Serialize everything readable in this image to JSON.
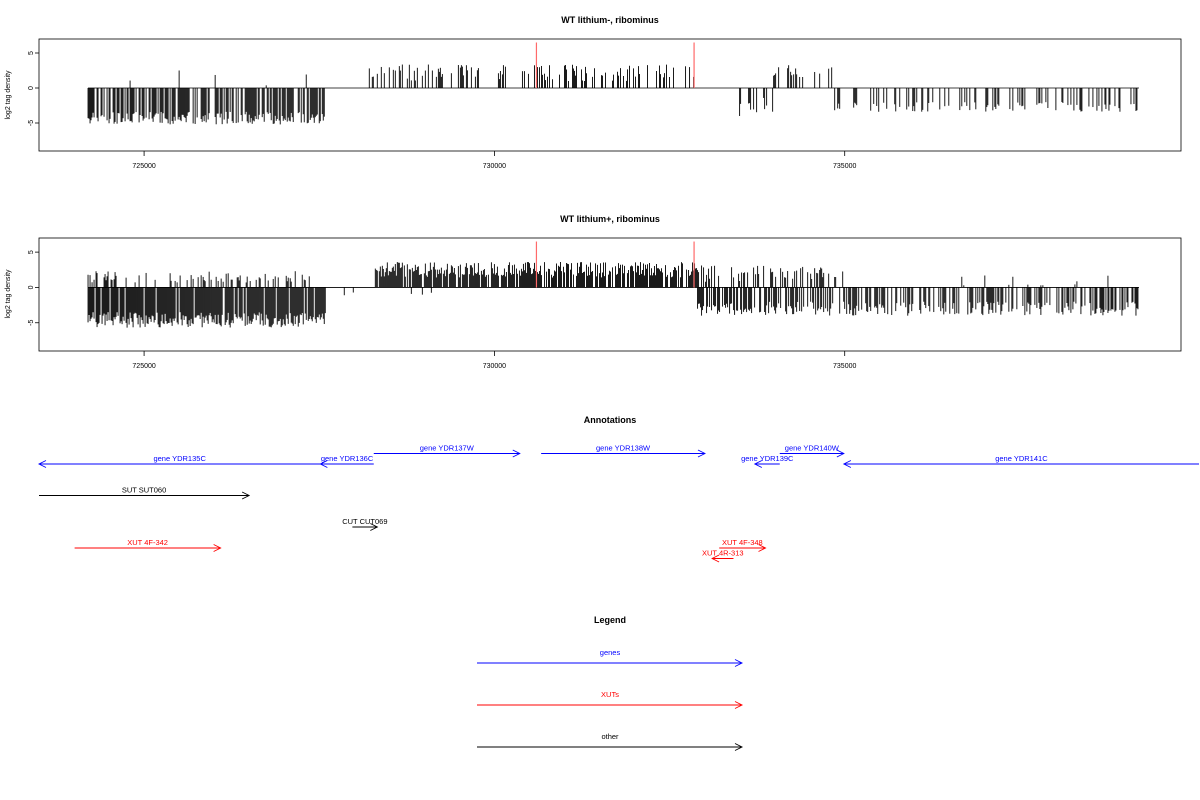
{
  "colors": {
    "genes": "#0000ff",
    "xuts": "#ff0000",
    "other": "#000000",
    "highlight": "#ff6a6a",
    "bars": "#000000"
  },
  "chart_data": [
    {
      "type": "bar",
      "title": "WT lithium-, ribominus",
      "ylabel": "log2 tag density",
      "xlim": [
        723500,
        739800
      ],
      "ylim": [
        -9,
        7
      ],
      "x_ticks": [
        725000,
        730000,
        735000
      ],
      "y_ticks": [
        -5,
        0,
        5
      ],
      "highlight_positions": [
        730600,
        732850
      ],
      "highlight_height": 6.5,
      "tracks": [
        {
          "strand": "+",
          "start": 728200,
          "end": 732900,
          "density": 0.3,
          "mean": 2.2,
          "spread": 1.2,
          "max": 4.5
        },
        {
          "strand": "+",
          "start": 733900,
          "end": 734900,
          "density": 0.22,
          "mean": 2.4,
          "spread": 1.0,
          "max": 4.3
        },
        {
          "strand": "+",
          "start": 724300,
          "end": 727600,
          "density": 0.01,
          "mean": 1.5,
          "spread": 1.5,
          "max": 3.8
        },
        {
          "strand": "-",
          "start": 724200,
          "end": 727600,
          "density": 0.6,
          "mean": -4.3,
          "spread": 0.9,
          "max": -7.1
        },
        {
          "strand": "-",
          "start": 733500,
          "end": 734000,
          "density": 0.3,
          "mean": -2.6,
          "spread": 1.5,
          "max": -6.3
        },
        {
          "strand": "-",
          "start": 734800,
          "end": 739200,
          "density": 0.28,
          "mean": -2.7,
          "spread": 0.7,
          "max": -4.6
        }
      ]
    },
    {
      "type": "bar",
      "title": "WT lithium+, ribominus",
      "ylabel": "log2 tag density",
      "xlim": [
        723500,
        739800
      ],
      "ylim": [
        -9,
        7
      ],
      "x_ticks": [
        725000,
        730000,
        735000
      ],
      "y_ticks": [
        -5,
        0,
        5
      ],
      "highlight_positions": [
        730600,
        732850
      ],
      "highlight_height": 6.5,
      "tracks": [
        {
          "strand": "+",
          "start": 724200,
          "end": 727600,
          "density": 0.25,
          "mean": 1.5,
          "spread": 0.8,
          "max": 3.2
        },
        {
          "strand": "+",
          "start": 728300,
          "end": 732900,
          "density": 0.8,
          "mean": 2.5,
          "spread": 1.1,
          "max": 6.5
        },
        {
          "strand": "+",
          "start": 732900,
          "end": 735000,
          "density": 0.4,
          "mean": 2.0,
          "spread": 1.2,
          "max": 5.2
        },
        {
          "strand": "+",
          "start": 735000,
          "end": 739200,
          "density": 0.03,
          "mean": 1.0,
          "spread": 0.8,
          "max": 2.3
        },
        {
          "strand": "-",
          "start": 724200,
          "end": 727600,
          "density": 0.9,
          "mean": -4.6,
          "spread": 1.1,
          "max": -8.5
        },
        {
          "strand": "-",
          "start": 727600,
          "end": 730000,
          "density": 0.03,
          "mean": -1.0,
          "spread": 0.5,
          "max": -2.0
        },
        {
          "strand": "-",
          "start": 732900,
          "end": 739200,
          "density": 0.55,
          "mean": -3.0,
          "spread": 1.0,
          "max": -7.0
        }
      ]
    }
  ],
  "annotations": {
    "title": "Annotations",
    "xlim": [
      723500,
      739800
    ],
    "features": [
      {
        "label": "gene YDR135C",
        "type": "genes",
        "start": 723500,
        "end": 727450,
        "strand": "-",
        "row": 0
      },
      {
        "label": "gene YDR136C",
        "type": "genes",
        "start": 727450,
        "end": 728200,
        "strand": "-",
        "row": 0
      },
      {
        "label": "gene YDR137W",
        "type": "genes",
        "start": 728200,
        "end": 730250,
        "strand": "+",
        "row": -1
      },
      {
        "label": "gene YDR138W",
        "type": "genes",
        "start": 730550,
        "end": 732850,
        "strand": "+",
        "row": -1
      },
      {
        "label": "gene YDR139C",
        "type": "genes",
        "start": 733550,
        "end": 733900,
        "strand": "-",
        "row": 0
      },
      {
        "label": "gene YDR140W",
        "type": "genes",
        "start": 733900,
        "end": 734800,
        "strand": "+",
        "row": -1
      },
      {
        "label": "gene YDR141C",
        "type": "genes",
        "start": 734800,
        "end": 739800,
        "strand": "-",
        "row": 0
      },
      {
        "label": "SUT SUT060",
        "type": "other",
        "start": 723500,
        "end": 726450,
        "strand": "+",
        "row": 3
      },
      {
        "label": "CUT CUT069",
        "type": "other",
        "start": 727900,
        "end": 728250,
        "strand": "+",
        "row": 6
      },
      {
        "label": "XUT 4F-342",
        "type": "xuts",
        "start": 724000,
        "end": 726050,
        "strand": "+",
        "row": 8
      },
      {
        "label": "XUT 4F-348",
        "type": "xuts",
        "start": 733050,
        "end": 733700,
        "strand": "+",
        "row": 8
      },
      {
        "label": "XUT 4R-313",
        "type": "xuts",
        "start": 732950,
        "end": 733250,
        "strand": "-",
        "row": 9
      }
    ]
  },
  "legend": {
    "title": "Legend",
    "items": [
      {
        "label": "genes",
        "type": "genes"
      },
      {
        "label": "XUTs",
        "type": "xuts"
      },
      {
        "label": "other",
        "type": "other"
      }
    ]
  }
}
